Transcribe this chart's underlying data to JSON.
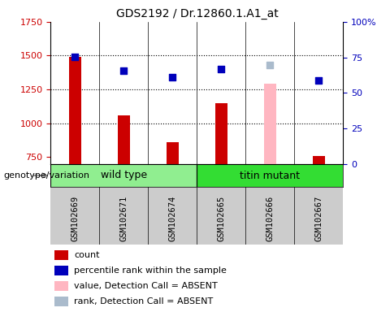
{
  "title": "GDS2192 / Dr.12860.1.A1_at",
  "samples": [
    "GSM102669",
    "GSM102671",
    "GSM102674",
    "GSM102665",
    "GSM102666",
    "GSM102667"
  ],
  "group_wt": {
    "name": "wild type",
    "color": "#90EE90",
    "indices": [
      0,
      1,
      2
    ]
  },
  "group_mut": {
    "name": "titin mutant",
    "color": "#33DD33",
    "indices": [
      3,
      4,
      5
    ]
  },
  "bar_values": [
    1490,
    1060,
    860,
    1150,
    1295,
    760
  ],
  "bar_colors": [
    "#CC0000",
    "#CC0000",
    "#CC0000",
    "#CC0000",
    "#FFB6C1",
    "#CC0000"
  ],
  "scatter_values": [
    1490,
    1390,
    1340,
    1400,
    1430,
    1315
  ],
  "scatter_colors": [
    "#0000BB",
    "#0000BB",
    "#0000BB",
    "#0000BB",
    "#AABBCC",
    "#0000BB"
  ],
  "ylim_left": [
    700,
    1750
  ],
  "ylim_right": [
    0,
    100
  ],
  "yticks_left": [
    750,
    1000,
    1250,
    1500,
    1750
  ],
  "yticks_right": [
    0,
    25,
    50,
    75,
    100
  ],
  "left_tick_color": "#CC0000",
  "right_tick_color": "#0000BB",
  "bar_width": 0.25,
  "genotype_label": "genotype/variation",
  "legend_items": [
    {
      "label": "count",
      "color": "#CC0000"
    },
    {
      "label": "percentile rank within the sample",
      "color": "#0000BB"
    },
    {
      "label": "value, Detection Call = ABSENT",
      "color": "#FFB6C1"
    },
    {
      "label": "rank, Detection Call = ABSENT",
      "color": "#AABBCC"
    }
  ],
  "title_fontsize": 10,
  "tick_fontsize": 8,
  "legend_fontsize": 8,
  "group_fontsize": 9,
  "xticklabel_fontsize": 7.5
}
